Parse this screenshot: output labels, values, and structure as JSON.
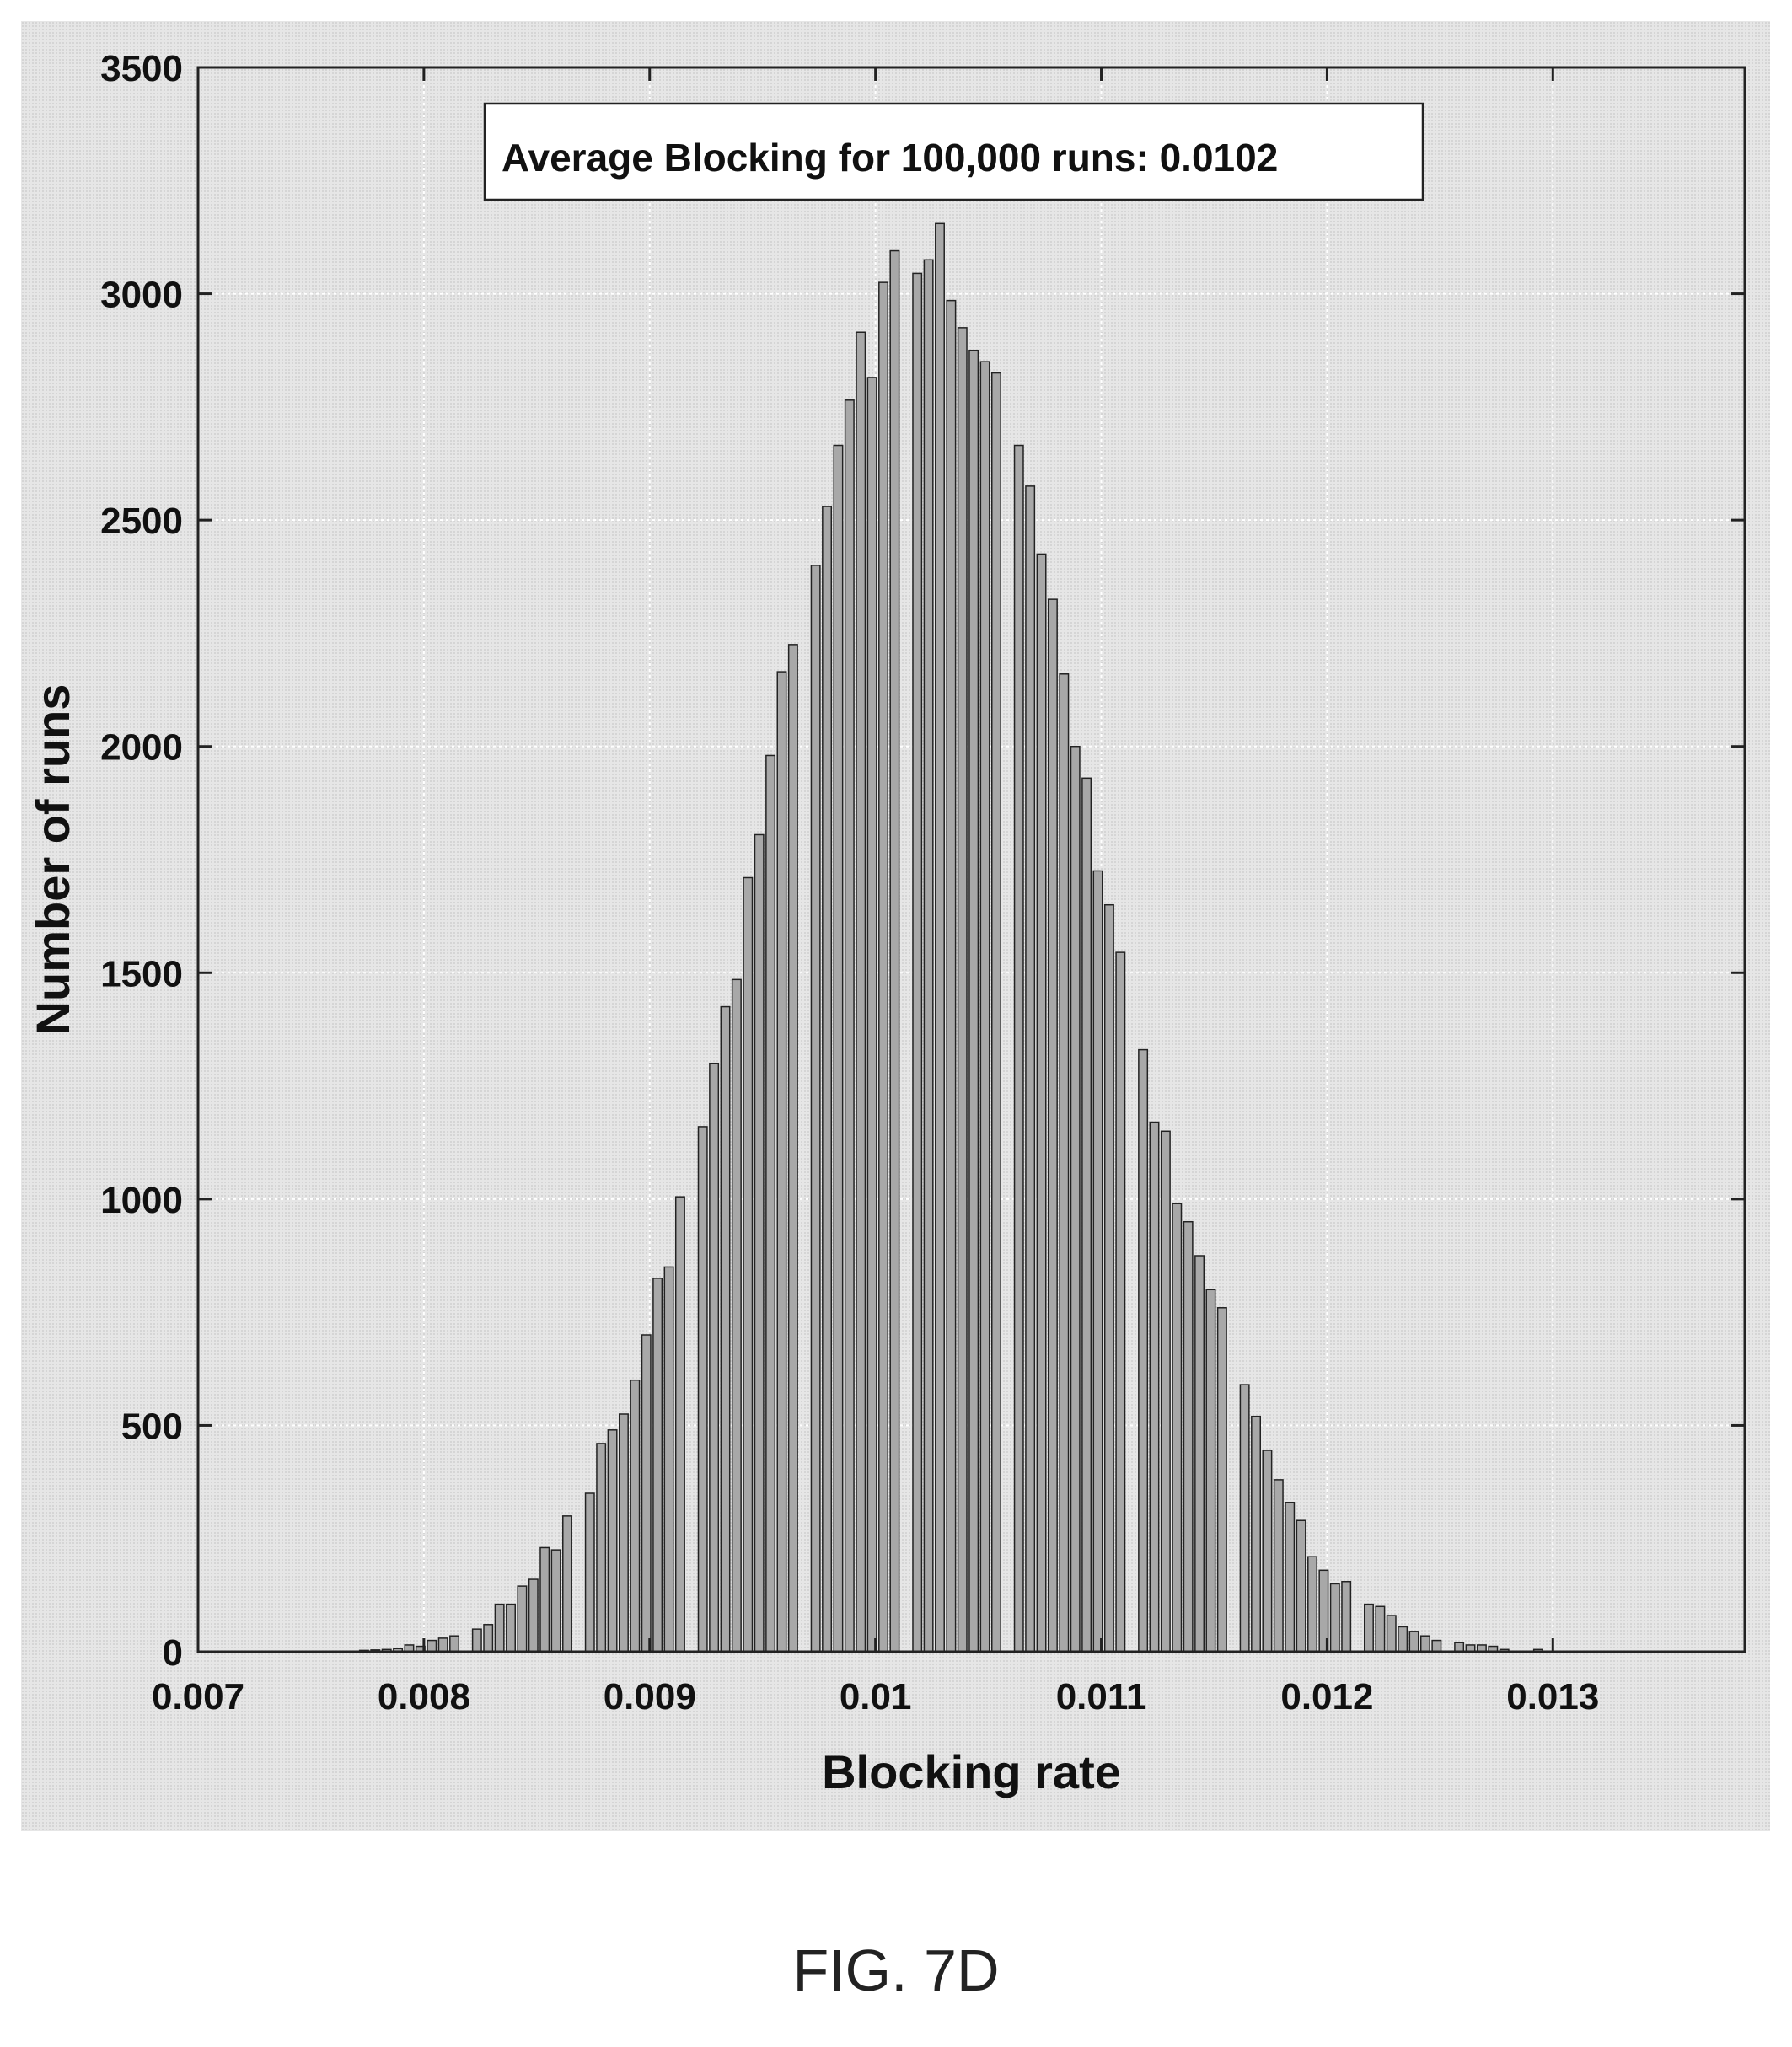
{
  "figure_caption": "FIG. 7D",
  "chart_data": {
    "type": "bar",
    "title": "",
    "xlabel": "Blocking rate",
    "ylabel": "Number of runs",
    "xlim": [
      0.007,
      0.01385
    ],
    "ylim": [
      0,
      3500
    ],
    "grid": true,
    "legend_placement": "top-center",
    "annotation": "Average Blocking for 100,000 runs:  0.0102",
    "xticks": [
      "0.007",
      "0.008",
      "0.009",
      "0.01",
      "0.011",
      "0.012",
      "0.013"
    ],
    "yticks": [
      "0",
      "500",
      "1000",
      "1500",
      "2000",
      "2500",
      "3000",
      "3500"
    ],
    "bar_color": "#a8a8a8",
    "bin_start": 0.00771,
    "bin_width": 5e-05,
    "values": [
      3,
      4,
      5,
      7,
      15,
      12,
      25,
      30,
      35,
      0,
      50,
      60,
      105,
      105,
      145,
      160,
      230,
      225,
      300,
      0,
      350,
      460,
      490,
      525,
      600,
      700,
      825,
      850,
      1005,
      0,
      1160,
      1300,
      1425,
      1485,
      1710,
      1805,
      1980,
      2165,
      2225,
      0,
      2400,
      2530,
      2665,
      2765,
      2915,
      2815,
      3025,
      3095,
      0,
      3045,
      3075,
      3155,
      2985,
      2925,
      2875,
      2850,
      2825,
      0,
      2665,
      2575,
      2425,
      2325,
      2160,
      2000,
      1930,
      1725,
      1650,
      1545,
      0,
      1330,
      1170,
      1150,
      990,
      950,
      875,
      800,
      760,
      0,
      590,
      520,
      445,
      380,
      330,
      290,
      210,
      180,
      150,
      155,
      0,
      105,
      100,
      80,
      55,
      45,
      35,
      25,
      0,
      20,
      15,
      15,
      12,
      5,
      0,
      0,
      5
    ]
  }
}
